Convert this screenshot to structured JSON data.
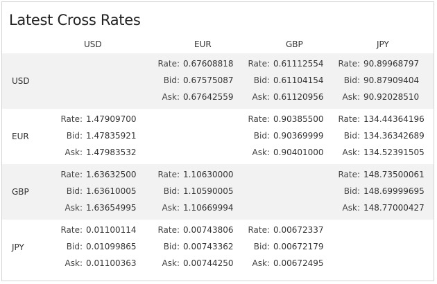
{
  "title": "Latest Cross Rates",
  "labels": {
    "rate": "Rate:",
    "bid": "Bid:",
    "ask": "Ask:"
  },
  "columns": [
    "USD",
    "EUR",
    "GBP",
    "JPY"
  ],
  "rows": [
    {
      "currency": "USD",
      "cells": [
        null,
        {
          "rate": "0.67608818",
          "bid": "0.67575087",
          "ask": "0.67642559"
        },
        {
          "rate": "0.61112554",
          "bid": "0.61104154",
          "ask": "0.61120956"
        },
        {
          "rate": "90.89968797",
          "bid": "90.87909404",
          "ask": "90.92028510"
        }
      ]
    },
    {
      "currency": "EUR",
      "cells": [
        {
          "rate": "1.47909700",
          "bid": "1.47835921",
          "ask": "1.47983532"
        },
        null,
        {
          "rate": "0.90385500",
          "bid": "0.90369999",
          "ask": "0.90401000"
        },
        {
          "rate": "134.44364196",
          "bid": "134.36342689",
          "ask": "134.52391505"
        }
      ]
    },
    {
      "currency": "GBP",
      "cells": [
        {
          "rate": "1.63632500",
          "bid": "1.63610005",
          "ask": "1.63654995"
        },
        {
          "rate": "1.10630000",
          "bid": "1.10590005",
          "ask": "1.10669994"
        },
        null,
        {
          "rate": "148.73500061",
          "bid": "148.69999695",
          "ask": "148.77000427"
        }
      ]
    },
    {
      "currency": "JPY",
      "cells": [
        {
          "rate": "0.01100114",
          "bid": "0.01099865",
          "ask": "0.01100363"
        },
        {
          "rate": "0.00743806",
          "bid": "0.00743362",
          "ask": "0.00744250"
        },
        {
          "rate": "0.00672337",
          "bid": "0.00672179",
          "ask": "0.00672495"
        },
        null
      ]
    }
  ]
}
